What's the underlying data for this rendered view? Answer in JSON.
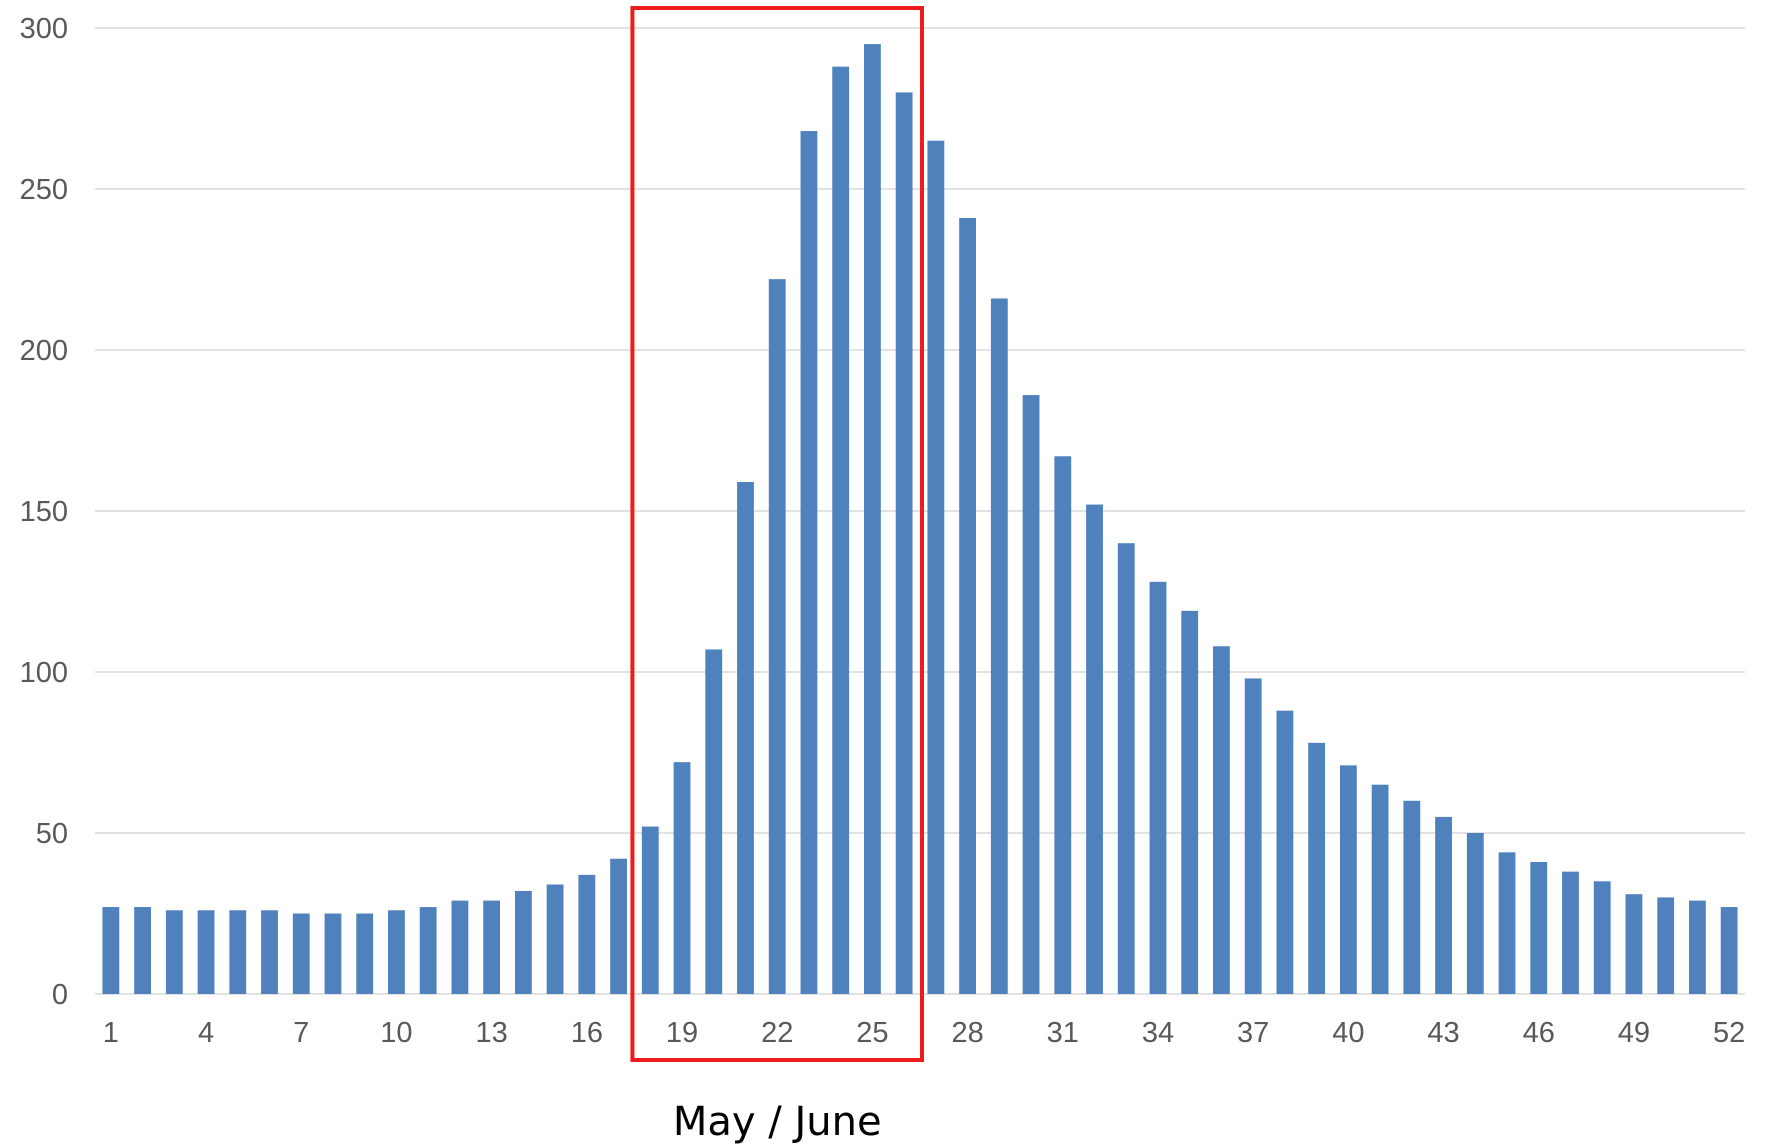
{
  "chart_data": {
    "type": "bar",
    "title": "",
    "xlabel": "",
    "ylabel": "",
    "ylim": [
      0,
      300
    ],
    "y_ticks": [
      0,
      50,
      100,
      150,
      200,
      250,
      300
    ],
    "x_tick_labels": [
      "1",
      "4",
      "7",
      "10",
      "13",
      "16",
      "19",
      "22",
      "25",
      "28",
      "31",
      "34",
      "37",
      "40",
      "43",
      "46",
      "49",
      "52"
    ],
    "grid": "horizontal",
    "legend": "none",
    "categories": [
      1,
      2,
      3,
      4,
      5,
      6,
      7,
      8,
      9,
      10,
      11,
      12,
      13,
      14,
      15,
      16,
      17,
      18,
      19,
      20,
      21,
      22,
      23,
      24,
      25,
      26,
      27,
      28,
      29,
      30,
      31,
      32,
      33,
      34,
      35,
      36,
      37,
      38,
      39,
      40,
      41,
      42,
      43,
      44,
      45,
      46,
      47,
      48,
      49,
      50,
      51,
      52
    ],
    "values": [
      27,
      27,
      26,
      26,
      26,
      26,
      25,
      25,
      25,
      26,
      27,
      29,
      29,
      32,
      34,
      37,
      42,
      52,
      72,
      107,
      159,
      222,
      268,
      288,
      295,
      280,
      265,
      241,
      216,
      186,
      167,
      152,
      140,
      128,
      119,
      108,
      98,
      88,
      78,
      71,
      65,
      60,
      55,
      50,
      44,
      41,
      38,
      35,
      31,
      30,
      29,
      27
    ],
    "colors": {
      "bar": "#4f81bd",
      "grid": "#d9d9d9",
      "highlight": "#ee1c1c"
    },
    "annotation": {
      "label": "May / June",
      "from_category": 18,
      "to_category": 26
    }
  }
}
